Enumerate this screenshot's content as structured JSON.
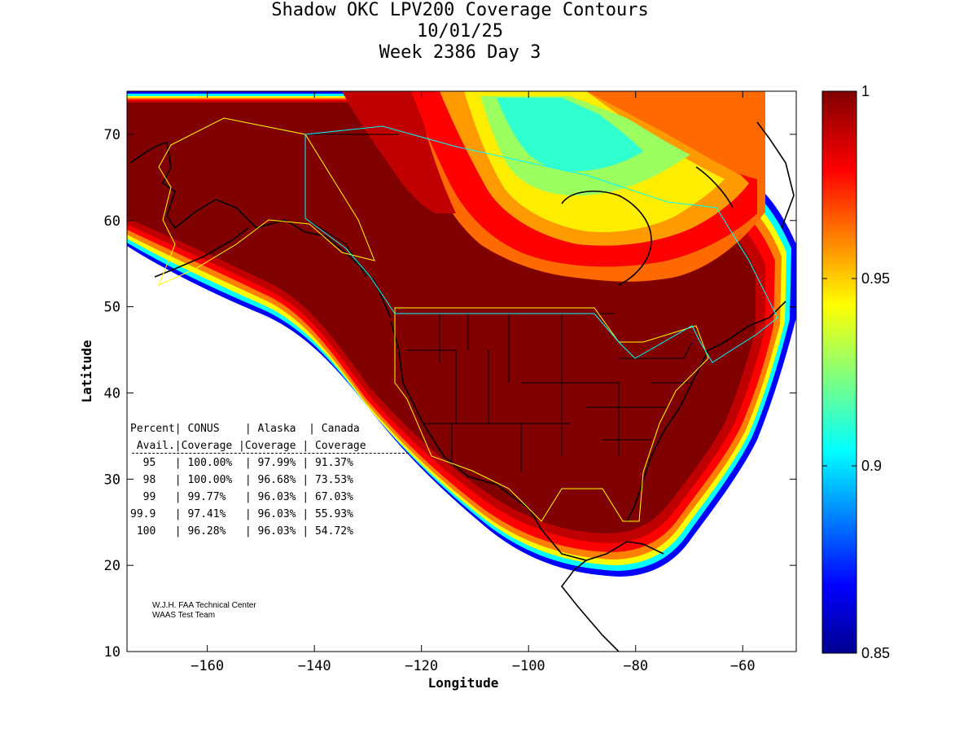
{
  "title": {
    "line1": "Shadow OKC LPV200 Coverage Contours",
    "line2": "10/01/25",
    "line3": "Week 2386 Day 3"
  },
  "axes": {
    "xlabel": "Longitude",
    "ylabel": "Latitude",
    "xlim": [
      -175,
      -50
    ],
    "ylim": [
      10,
      75
    ],
    "xticks": [
      -160,
      -140,
      -120,
      -100,
      -80,
      -60
    ],
    "yticks": [
      10,
      20,
      30,
      40,
      50,
      60,
      70
    ]
  },
  "colorbar": {
    "min": 0.85,
    "max": 1,
    "ticks": [
      "1",
      "0.95",
      "0.9",
      "0.85"
    ],
    "tick_values": [
      1,
      0.95,
      0.9,
      0.85
    ],
    "colormap": "jet"
  },
  "table": {
    "header1": "Percent| CONUS    | Alaska  | Canada",
    "header2": " Avail.|Coverage |Coverage | Coverage",
    "separator": "-------------------------------------------",
    "rows": [
      "  95   | 100.00%  | 97.99% | 91.37%",
      "  98   | 100.00%  | 96.68% | 73.53%",
      "  99   | 99.77%   | 96.03% | 67.03%",
      "99.9   | 97.41%   | 96.03% | 55.93%",
      " 100   | 96.28%   | 96.03% | 54.72%"
    ]
  },
  "credit": {
    "line1": "W.J.H. FAA Technical Center",
    "line2": "WAAS Test Team"
  },
  "colors": {
    "max_coverage": "#800000",
    "high": "#ff0000",
    "mid": "#ffff00",
    "low": "#00ffff",
    "min": "#00008f",
    "conus_boundary": "#ffff00",
    "canada_boundary": "#00ffff",
    "map_lines": "#000000"
  }
}
